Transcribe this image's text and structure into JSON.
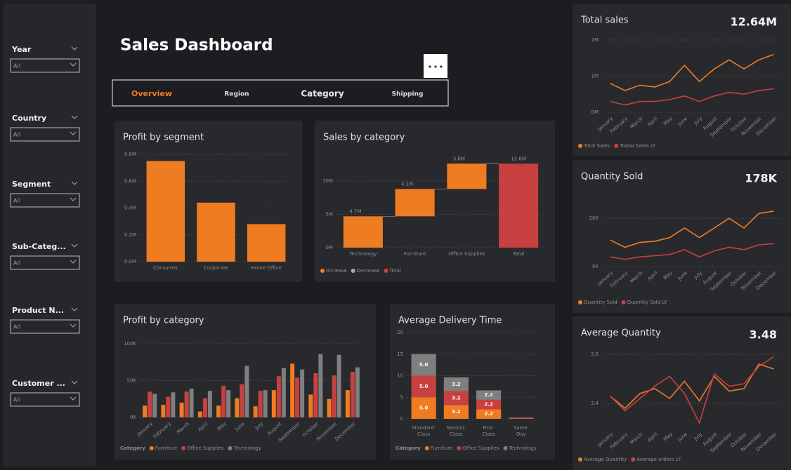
{
  "filters": [
    {
      "label": "Year",
      "value": "All"
    },
    {
      "label": "Country",
      "value": "All"
    },
    {
      "label": "Segment",
      "value": "All"
    },
    {
      "label": "Sub-Categ...",
      "value": "All"
    },
    {
      "label": "Product N...",
      "value": "All"
    },
    {
      "label": "Customer ...",
      "value": "All"
    }
  ],
  "header": {
    "title": "Sales Dashboard"
  },
  "tabs": [
    "Overview",
    "Region",
    "Category",
    "Shipping"
  ],
  "chart_data": [
    {
      "type": "bar",
      "title": "Profit by segment",
      "categories": [
        "Consumer",
        "Corporate",
        "Home Office"
      ],
      "values": [
        0.75,
        0.44,
        0.28
      ],
      "color": "#f07c22",
      "ylim": [
        0,
        0.8
      ],
      "yticks": [
        {
          "value": 0,
          "label": "0.0M"
        },
        {
          "value": 0.2,
          "label": "0.2M"
        },
        {
          "value": 0.4,
          "label": "0.4M"
        },
        {
          "value": 0.6,
          "label": "0.6M"
        },
        {
          "value": 0.8,
          "label": "0.8M"
        }
      ],
      "grid": true
    },
    {
      "type": "waterfall",
      "title": "Sales by category",
      "categories": [
        "Technology",
        "Furniture",
        "Office Supplies",
        "Total"
      ],
      "values": [
        4.7,
        4.1,
        3.8,
        12.6
      ],
      "value_labels": [
        "4.7M",
        "4.1M",
        "3.8M",
        "12.6M"
      ],
      "ylim": [
        0,
        13.5
      ],
      "yticks": [
        {
          "value": 0,
          "label": "0M"
        },
        {
          "value": 5,
          "label": "5M"
        },
        {
          "value": 10,
          "label": "10M"
        }
      ],
      "grid": true,
      "legend": [
        {
          "name": "Increase",
          "color": "#f07c22"
        },
        {
          "name": "Decrease",
          "color": "#aaaaaa"
        },
        {
          "name": "Total",
          "color": "#c94040"
        }
      ]
    },
    {
      "type": "grouped_bar",
      "title": "Profit by category",
      "categories": [
        "January",
        "February",
        "March",
        "April",
        "May",
        "June",
        "July",
        "August",
        "September",
        "October",
        "November",
        "December"
      ],
      "legend_title": "Category",
      "series": [
        {
          "name": "Furniture",
          "color": "#f07c22",
          "values": [
            16,
            17,
            20,
            8,
            16,
            26,
            15,
            37,
            73,
            31,
            25,
            37
          ]
        },
        {
          "name": "Office Supplies",
          "color": "#c94040",
          "values": [
            35,
            28,
            35,
            26,
            43,
            45,
            36,
            56,
            54,
            60,
            57,
            62
          ]
        },
        {
          "name": "Technology",
          "color": "#7f7f7f",
          "values": [
            32,
            34,
            39,
            36,
            37,
            70,
            37,
            67,
            65,
            86,
            85,
            68
          ]
        }
      ],
      "ylim": [
        0,
        100
      ],
      "yticks": [
        {
          "value": 0,
          "label": "0K"
        },
        {
          "value": 50,
          "label": "50K"
        },
        {
          "value": 100,
          "label": "100K"
        }
      ],
      "grid": true
    },
    {
      "type": "stacked_bar",
      "title": "Average Delivery Time",
      "categories": [
        "Standard Class",
        "Second Class",
        "First Class",
        "Same Day"
      ],
      "legend_title": "Category",
      "series": [
        {
          "name": "Furniture",
          "color": "#f07c22",
          "values": [
            5,
            3.2,
            2.2,
            0.1
          ],
          "value_labels": [
            "5.0",
            "3.2",
            "2.2",
            null
          ]
        },
        {
          "name": "Office Supplies",
          "color": "#c94040",
          "values": [
            5,
            3.2,
            2.2,
            0.1
          ],
          "value_labels": [
            "5.0",
            "3.2",
            "2.2",
            null
          ]
        },
        {
          "name": "Technology",
          "color": "#7f7f7f",
          "values": [
            5,
            3.2,
            2.2,
            0.1
          ],
          "value_labels": [
            "5.0",
            "3.2",
            "2.2",
            null
          ]
        }
      ],
      "ylim": [
        0,
        20
      ],
      "yticks": [
        0,
        5,
        10,
        15,
        20
      ],
      "grid": true
    },
    {
      "type": "line",
      "title": "Total sales",
      "kpi": "12.64M",
      "categories": [
        "January",
        "February",
        "March",
        "April",
        "May",
        "June",
        "July",
        "August",
        "September",
        "October",
        "November",
        "December"
      ],
      "series": [
        {
          "name": "Total Sales",
          "color": "#f07c22",
          "values": [
            0.8,
            0.6,
            0.75,
            0.7,
            0.85,
            1.3,
            0.85,
            1.2,
            1.45,
            1.2,
            1.45,
            1.6
          ]
        },
        {
          "name": "Toatal Sales LY",
          "color": "#c94040",
          "values": [
            0.3,
            0.2,
            0.3,
            0.3,
            0.35,
            0.45,
            0.3,
            0.45,
            0.55,
            0.5,
            0.6,
            0.65
          ]
        }
      ],
      "ylim": [
        0,
        2
      ],
      "yticks": [
        {
          "value": 0,
          "label": "0M"
        },
        {
          "value": 1,
          "label": "1M"
        },
        {
          "value": 2,
          "label": "2M"
        }
      ],
      "grid": true
    },
    {
      "type": "line",
      "title": "Quantity Sold",
      "kpi": "178K",
      "categories": [
        "January",
        "February",
        "March",
        "April",
        "May",
        "June",
        "July",
        "August",
        "September",
        "October",
        "November",
        "December"
      ],
      "series": [
        {
          "name": "Quantity Sold",
          "color": "#f07c22",
          "values": [
            11,
            8,
            10,
            10.5,
            12,
            16,
            12,
            16,
            20,
            16,
            22,
            23
          ]
        },
        {
          "name": "Quantity Sold LY",
          "color": "#c94040",
          "values": [
            4,
            3,
            4,
            4.5,
            5,
            7,
            4,
            6.5,
            8,
            7,
            9,
            9.5
          ]
        }
      ],
      "ylim": [
        0,
        25
      ],
      "yticks": [
        {
          "value": 0,
          "label": "0K"
        },
        {
          "value": 20,
          "label": "20K"
        }
      ],
      "grid": true
    },
    {
      "type": "line",
      "title": "Average Quantity",
      "kpi": "3.48",
      "categories": [
        "January",
        "February",
        "March",
        "April",
        "May",
        "June",
        "July",
        "August",
        "September",
        "October",
        "November",
        "December"
      ],
      "series": [
        {
          "name": "Average Quantity",
          "color": "#f07c22",
          "values": [
            3.43,
            3.38,
            3.44,
            3.46,
            3.42,
            3.49,
            3.41,
            3.51,
            3.45,
            3.46,
            3.56,
            3.54
          ]
        },
        {
          "name": "Average orders LY",
          "color": "#c94040",
          "values": [
            3.43,
            3.37,
            3.42,
            3.47,
            3.51,
            3.44,
            3.32,
            3.52,
            3.47,
            3.48,
            3.55,
            3.59
          ]
        }
      ],
      "ylim": [
        3.3,
        3.62
      ],
      "yticks": [
        3.4,
        3.6
      ],
      "grid": true
    }
  ]
}
